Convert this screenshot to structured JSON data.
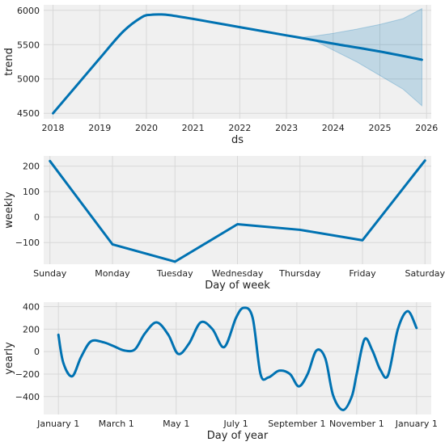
{
  "colors": {
    "background": "#ffffff",
    "panel": "#f0f0f0",
    "grid": "#d8d8d8",
    "line": "#0072b2",
    "band": "#0072b2",
    "text": "#222222"
  },
  "chart_data": [
    {
      "type": "line",
      "name": "trend",
      "xlabel": "ds",
      "ylabel": "trend",
      "grid": true,
      "xlim": [
        2017.8,
        2026.1
      ],
      "ylim": [
        4420,
        6080
      ],
      "x_ticks": [
        2018,
        2019,
        2020,
        2021,
        2022,
        2023,
        2024,
        2025,
        2026
      ],
      "x_tick_labels": [
        "2018",
        "2019",
        "2020",
        "2021",
        "2022",
        "2023",
        "2024",
        "2025",
        "2026"
      ],
      "y_ticks": [
        4500,
        5000,
        5500,
        6000
      ],
      "y_tick_labels": [
        "4500",
        "5000",
        "5500",
        "6000"
      ],
      "series": [
        {
          "x": [
            2018.0,
            2018.5,
            2019.0,
            2019.5,
            2019.9,
            2020.1,
            2020.3,
            2020.5,
            2021.0,
            2022.0,
            2023.0,
            2023.3,
            2024.0,
            2025.0,
            2025.9
          ],
          "y": [
            4500,
            4900,
            5300,
            5690,
            5900,
            5935,
            5940,
            5930,
            5875,
            5755,
            5635,
            5600,
            5515,
            5400,
            5280
          ]
        }
      ],
      "uncertainty": {
        "x": [
          2023.3,
          2023.6,
          2024.0,
          2024.5,
          2025.0,
          2025.5,
          2025.9
        ],
        "upper": [
          5605,
          5625,
          5665,
          5725,
          5795,
          5880,
          6025
        ],
        "lower": [
          5595,
          5560,
          5420,
          5250,
          5050,
          4850,
          4610
        ]
      }
    },
    {
      "type": "line",
      "name": "weekly",
      "xlabel": "Day of week",
      "ylabel": "weekly",
      "grid": true,
      "categories": [
        "Sunday",
        "Monday",
        "Tuesday",
        "Wednesday",
        "Thursday",
        "Friday",
        "Saturday"
      ],
      "ylim": [
        -185,
        240
      ],
      "y_ticks": [
        -100,
        0,
        100,
        200
      ],
      "y_tick_labels": [
        "−100",
        "0",
        "100",
        "200"
      ],
      "series": [
        {
          "values": [
            220,
            -107,
            -175,
            -28,
            -50,
            -91,
            222
          ]
        }
      ]
    },
    {
      "type": "line",
      "name": "yearly",
      "xlabel": "Day of year",
      "ylabel": "yearly",
      "grid": true,
      "xlim": [
        -15,
        380
      ],
      "ylim": [
        -560,
        440
      ],
      "x_ticks": [
        0,
        59,
        120,
        181,
        243,
        304,
        365
      ],
      "x_tick_labels": [
        "January 1",
        "March 1",
        "May 1",
        "July 1",
        "September 1",
        "November 1",
        "January 1"
      ],
      "y_ticks": [
        -400,
        -200,
        0,
        200,
        400
      ],
      "y_tick_labels": [
        "−400",
        "−200",
        "0",
        "200",
        "400"
      ],
      "series": [
        {
          "x": [
            0,
            5,
            14,
            23,
            33,
            45,
            56,
            67,
            78,
            88,
            100,
            112,
            122,
            133,
            145,
            157,
            169,
            181,
            189,
            198,
            206,
            214,
            225,
            236,
            245,
            254,
            263,
            272,
            280,
            290,
            299,
            304,
            312,
            320,
            328,
            336,
            346,
            356,
            365
          ],
          "y": [
            150,
            -100,
            -220,
            -50,
            90,
            85,
            50,
            10,
            20,
            160,
            260,
            150,
            -20,
            70,
            260,
            200,
            40,
            300,
            390,
            300,
            -200,
            -230,
            -170,
            -200,
            -310,
            -200,
            10,
            -60,
            -390,
            -520,
            -400,
            -200,
            110,
            10,
            -160,
            -210,
            200,
            360,
            210
          ]
        }
      ]
    }
  ]
}
